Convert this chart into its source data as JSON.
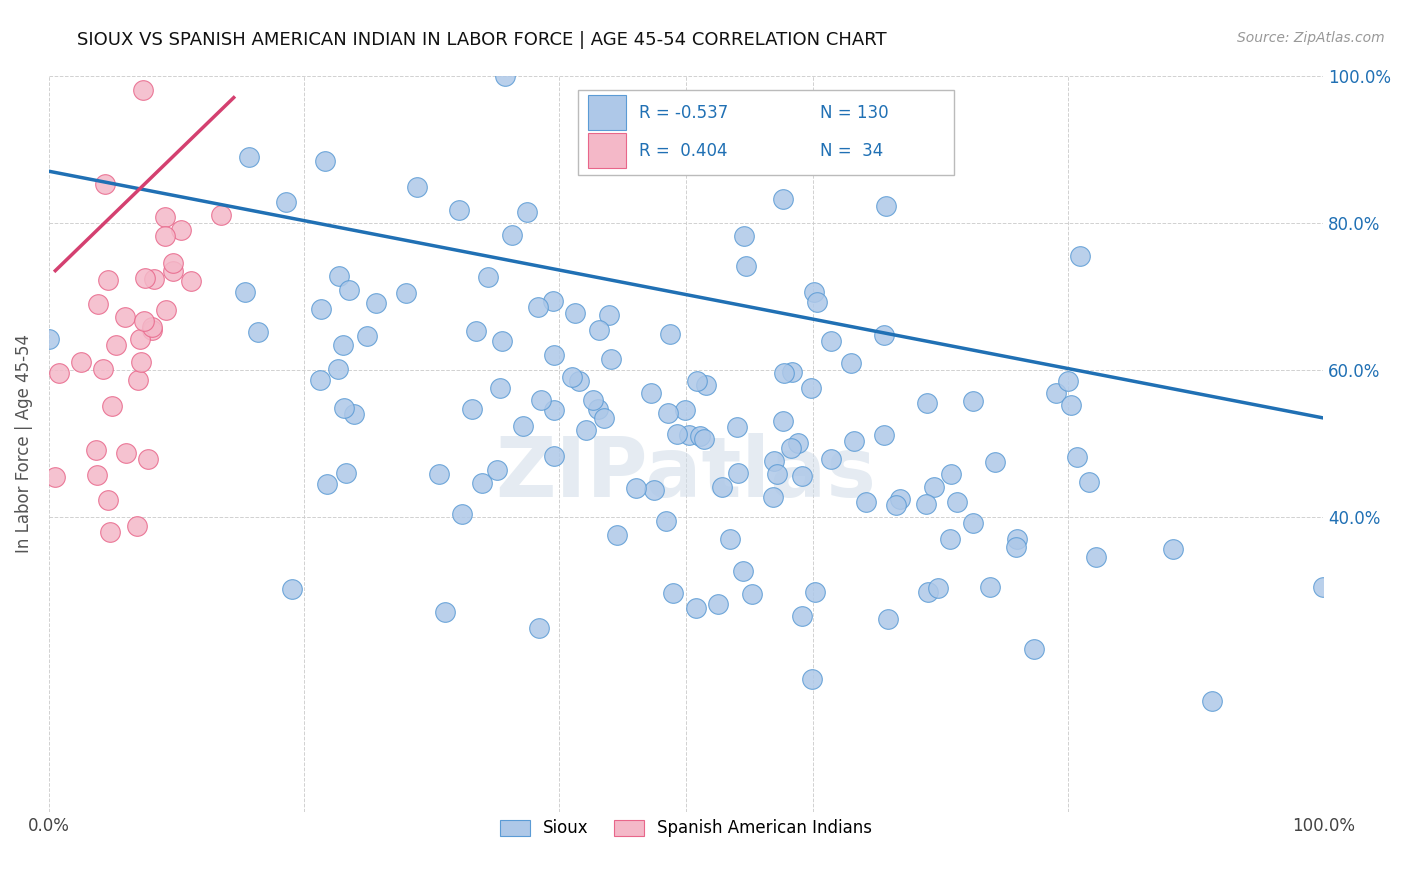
{
  "title": "SIOUX VS SPANISH AMERICAN INDIAN IN LABOR FORCE | AGE 45-54 CORRELATION CHART",
  "source": "Source: ZipAtlas.com",
  "ylabel": "In Labor Force | Age 45-54",
  "x_min": 0.0,
  "x_max": 1.0,
  "y_min": 0.0,
  "y_max": 1.0,
  "legend_labels": [
    "Sioux",
    "Spanish American Indians"
  ],
  "blue_color": "#aec8e8",
  "blue_edge_color": "#5b9bd5",
  "pink_color": "#f4b8c8",
  "pink_edge_color": "#e8668a",
  "blue_line_color": "#2070b4",
  "pink_line_color": "#d44070",
  "R_blue": -0.537,
  "N_blue": 130,
  "R_pink": 0.404,
  "N_pink": 34,
  "watermark": "ZIPatlas",
  "blue_trendline_x0": 0.0,
  "blue_trendline_y0": 0.87,
  "blue_trendline_x1": 1.0,
  "blue_trendline_y1": 0.535,
  "pink_trendline_x0": 0.005,
  "pink_trendline_y0": 0.735,
  "pink_trendline_x1": 0.145,
  "pink_trendline_y1": 0.97,
  "blue_seed": 123,
  "pink_seed": 456
}
